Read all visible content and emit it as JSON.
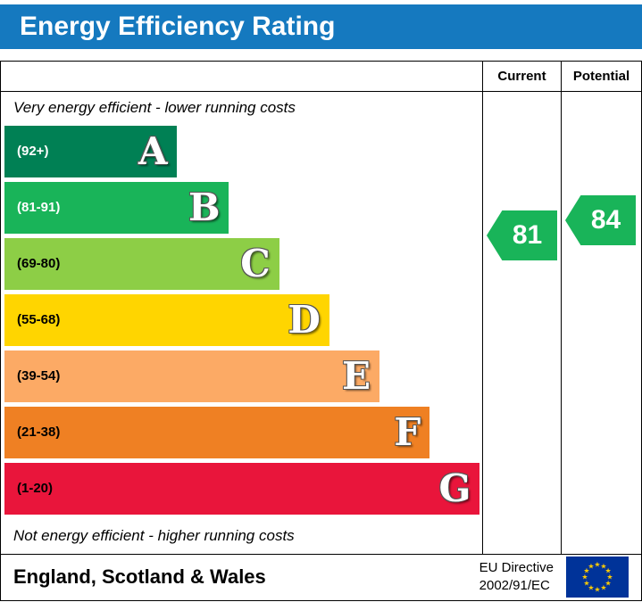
{
  "header": {
    "title": "Energy Efficiency Rating",
    "bg_color": "#1579bf"
  },
  "chart_data": {
    "type": "bar",
    "title": "Energy Efficiency Rating",
    "columns": {
      "current": "Current",
      "potential": "Potential"
    },
    "top_note": "Very energy efficient - lower running costs",
    "bottom_note": "Not energy efficient - higher running costs",
    "bands": [
      {
        "letter": "A",
        "range_label": "(92+)",
        "min": 92,
        "max": 100,
        "color": "#008054",
        "label_color": "#ffffff",
        "width_pct": 36
      },
      {
        "letter": "B",
        "range_label": "(81-91)",
        "min": 81,
        "max": 91,
        "color": "#19b459",
        "label_color": "#ffffff",
        "width_pct": 47
      },
      {
        "letter": "C",
        "range_label": "(69-80)",
        "min": 69,
        "max": 80,
        "color": "#8dce46",
        "label_color": "#000000",
        "width_pct": 57.5
      },
      {
        "letter": "D",
        "range_label": "(55-68)",
        "min": 55,
        "max": 68,
        "color": "#ffd500",
        "label_color": "#000000",
        "width_pct": 68
      },
      {
        "letter": "E",
        "range_label": "(39-54)",
        "min": 39,
        "max": 54,
        "color": "#fcaa65",
        "label_color": "#000000",
        "width_pct": 78.5
      },
      {
        "letter": "F",
        "range_label": "(21-38)",
        "min": 21,
        "max": 38,
        "color": "#ef8023",
        "label_color": "#000000",
        "width_pct": 89
      },
      {
        "letter": "G",
        "range_label": "(1-20)",
        "min": 1,
        "max": 20,
        "color": "#e9153b",
        "label_color": "#000000",
        "width_pct": 99.5
      }
    ],
    "ratings": {
      "current": {
        "value": 81,
        "arrow_color": "#19b459"
      },
      "potential": {
        "value": 84,
        "arrow_color": "#19b459"
      }
    }
  },
  "footer": {
    "region": "England, Scotland & Wales",
    "directive_line1": "EU Directive",
    "directive_line2": "2002/91/EC",
    "flag_colors": {
      "field": "#003399",
      "stars": "#ffcc00"
    }
  }
}
